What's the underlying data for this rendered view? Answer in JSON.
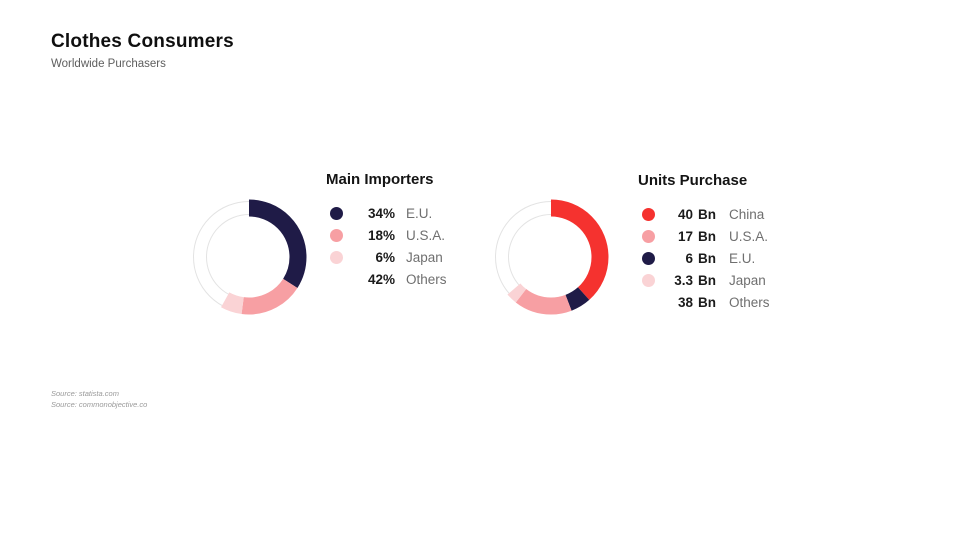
{
  "header": {
    "title": "Clothes Consumers",
    "subtitle": "Worldwide Purchasers"
  },
  "footer": {
    "sources": [
      "Source: statista.com",
      "Source: commonobjective.co"
    ]
  },
  "colors": {
    "navy": "#1f1b47",
    "red": "#f5322f",
    "pink": "#f79fa3",
    "light_pink": "#fad3d5",
    "empty": "#ffffff",
    "ring_border": "#e3e3e3"
  },
  "chart_data": [
    {
      "type": "pie",
      "variant": "donut",
      "title": "Main Importers",
      "unit": "%",
      "legend_position": "right",
      "start_angle_deg": -90,
      "direction": "clockwise",
      "legend": [
        {
          "label": "E.U.",
          "value": 34,
          "display": "34%",
          "color": "#1f1b47"
        },
        {
          "label": "U.S.A.",
          "value": 18,
          "display": "18%",
          "color": "#f79fa3"
        },
        {
          "label": "Japan",
          "value": 6,
          "display": "6%",
          "color": "#fad3d5"
        },
        {
          "label": "Others",
          "value": 42,
          "display": "42%",
          "color": null
        }
      ],
      "donut_order": [
        0,
        1,
        2
      ]
    },
    {
      "type": "pie",
      "variant": "donut",
      "title": "Units Purchase",
      "unit": "Bn",
      "legend_position": "right",
      "start_angle_deg": -90,
      "direction": "clockwise",
      "legend": [
        {
          "label": "China",
          "value": 40,
          "display": "40",
          "unit": "Bn",
          "color": "#f5322f"
        },
        {
          "label": "U.S.A.",
          "value": 17,
          "display": "17",
          "unit": "Bn",
          "color": "#f79fa3"
        },
        {
          "label": "E.U.",
          "value": 6,
          "display": "6",
          "unit": "Bn",
          "color": "#1f1b47"
        },
        {
          "label": "Japan",
          "value": 3.3,
          "display": "3.3",
          "unit": "Bn",
          "color": "#fad3d5"
        },
        {
          "label": "Others",
          "value": 38,
          "display": "38",
          "unit": "Bn",
          "color": null
        }
      ],
      "donut_order": [
        0,
        2,
        1,
        3
      ]
    }
  ]
}
